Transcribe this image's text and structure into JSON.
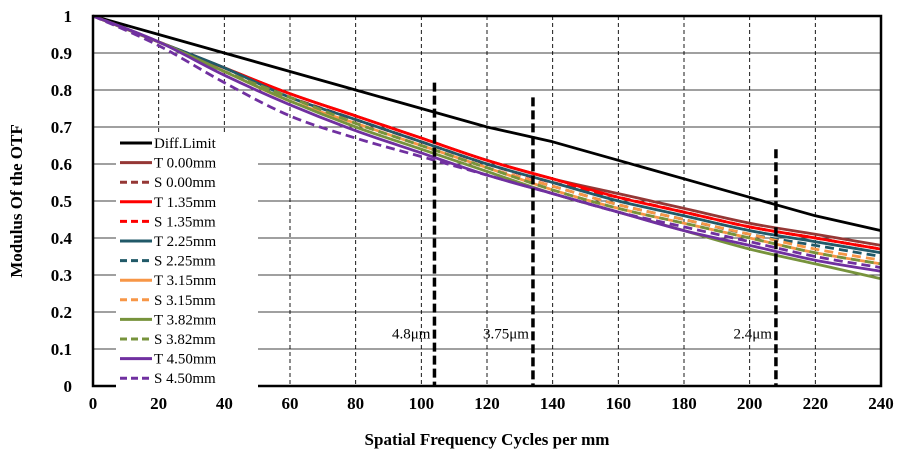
{
  "chart_data": {
    "type": "line",
    "xlabel": "Spatial Frequency Cycles per mm",
    "ylabel": "Modulus Of  the OTF",
    "xlim": [
      0,
      240
    ],
    "ylim": [
      0,
      1
    ],
    "x_ticks": [
      "0",
      "20",
      "40",
      "60",
      "80",
      "100",
      "120",
      "140",
      "160",
      "180",
      "200",
      "220",
      "240"
    ],
    "y_ticks": [
      "0",
      "0.1",
      "0.2",
      "0.3",
      "0.4",
      "0.5",
      "0.6",
      "0.7",
      "0.8",
      "0.9",
      "1"
    ],
    "grid": {
      "horizontal": true,
      "vertical": "dashed"
    },
    "legend_position": "left",
    "x": [
      0,
      20,
      40,
      60,
      80,
      100,
      120,
      140,
      160,
      180,
      200,
      220,
      240
    ],
    "series": [
      {
        "name": "Diff.Limit",
        "color": "#000000",
        "dash": false,
        "values": [
          1.0,
          0.95,
          0.9,
          0.85,
          0.8,
          0.75,
          0.7,
          0.66,
          0.61,
          0.56,
          0.51,
          0.46,
          0.42
        ]
      },
      {
        "name": "T 0.00mm",
        "color": "#953735",
        "dash": false,
        "values": [
          1.0,
          0.93,
          0.86,
          0.79,
          0.73,
          0.67,
          0.61,
          0.56,
          0.52,
          0.48,
          0.44,
          0.41,
          0.38
        ]
      },
      {
        "name": "S 0.00mm",
        "color": "#953735",
        "dash": true,
        "values": [
          1.0,
          0.93,
          0.85,
          0.78,
          0.72,
          0.66,
          0.6,
          0.55,
          0.51,
          0.47,
          0.43,
          0.4,
          0.37
        ]
      },
      {
        "name": "T 1.35mm",
        "color": "#ff0000",
        "dash": false,
        "values": [
          1.0,
          0.93,
          0.86,
          0.79,
          0.73,
          0.67,
          0.61,
          0.56,
          0.51,
          0.47,
          0.43,
          0.4,
          0.37
        ]
      },
      {
        "name": "S 1.35mm",
        "color": "#ff0000",
        "dash": true,
        "values": [
          1.0,
          0.93,
          0.85,
          0.78,
          0.72,
          0.66,
          0.6,
          0.55,
          0.51,
          0.47,
          0.43,
          0.4,
          0.37
        ]
      },
      {
        "name": "T 2.25mm",
        "color": "#215968",
        "dash": false,
        "values": [
          1.0,
          0.93,
          0.86,
          0.78,
          0.72,
          0.66,
          0.6,
          0.55,
          0.5,
          0.46,
          0.42,
          0.39,
          0.36
        ]
      },
      {
        "name": "S 2.25mm",
        "color": "#215968",
        "dash": true,
        "values": [
          1.0,
          0.93,
          0.85,
          0.78,
          0.71,
          0.65,
          0.59,
          0.54,
          0.49,
          0.45,
          0.41,
          0.38,
          0.35
        ]
      },
      {
        "name": "T 3.15mm",
        "color": "#f79646",
        "dash": false,
        "values": [
          1.0,
          0.93,
          0.85,
          0.77,
          0.71,
          0.65,
          0.59,
          0.53,
          0.48,
          0.44,
          0.4,
          0.36,
          0.33
        ]
      },
      {
        "name": "S 3.15mm",
        "color": "#f79646",
        "dash": true,
        "values": [
          1.0,
          0.93,
          0.85,
          0.78,
          0.71,
          0.65,
          0.59,
          0.54,
          0.49,
          0.45,
          0.41,
          0.37,
          0.34
        ]
      },
      {
        "name": "T 3.82mm",
        "color": "#77933c",
        "dash": false,
        "values": [
          1.0,
          0.93,
          0.85,
          0.77,
          0.7,
          0.64,
          0.58,
          0.52,
          0.47,
          0.42,
          0.37,
          0.33,
          0.29
        ]
      },
      {
        "name": "S 3.82mm",
        "color": "#77933c",
        "dash": true,
        "values": [
          1.0,
          0.93,
          0.85,
          0.78,
          0.71,
          0.65,
          0.59,
          0.53,
          0.48,
          0.44,
          0.4,
          0.36,
          0.33
        ]
      },
      {
        "name": "T 4.50mm",
        "color": "#7030a0",
        "dash": false,
        "values": [
          1.0,
          0.93,
          0.84,
          0.76,
          0.69,
          0.63,
          0.57,
          0.52,
          0.47,
          0.42,
          0.38,
          0.34,
          0.31
        ]
      },
      {
        "name": "S 4.50mm",
        "color": "#7030a0",
        "dash": true,
        "values": [
          1.0,
          0.92,
          0.82,
          0.73,
          0.67,
          0.62,
          0.57,
          0.52,
          0.47,
          0.43,
          0.39,
          0.35,
          0.32
        ]
      }
    ],
    "annotations": [
      {
        "text": "4.8μm",
        "x": 104,
        "line_top": 0.82
      },
      {
        "text": "3.75μm",
        "x": 134,
        "line_top": 0.78
      },
      {
        "text": "2.4μm",
        "x": 208,
        "line_top": 0.64
      }
    ]
  }
}
